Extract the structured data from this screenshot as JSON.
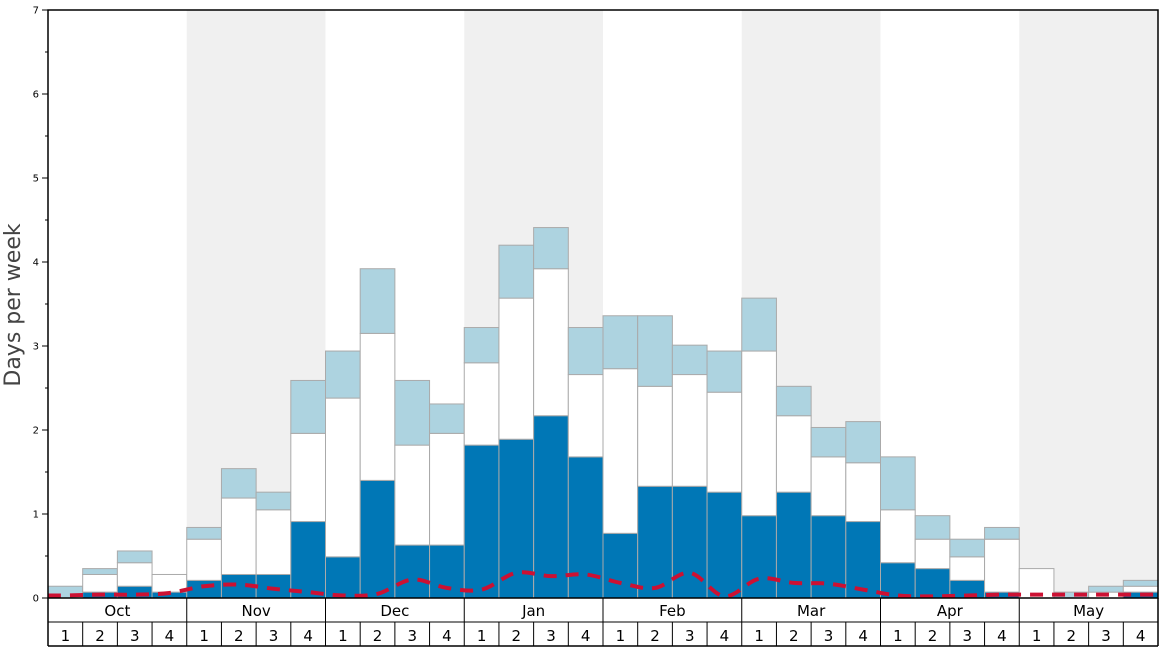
{
  "chart_data": {
    "type": "bar",
    "stacked": true,
    "title": "",
    "xlabel": "",
    "ylabel": "Days per week",
    "ylim": [
      0,
      7
    ],
    "yticks": [
      "0",
      "1",
      "2",
      "3",
      "4",
      "5",
      "6",
      "7"
    ],
    "months": [
      "Oct",
      "Nov",
      "Dec",
      "Jan",
      "Feb",
      "Mar",
      "Apr",
      "May"
    ],
    "week_labels": [
      "1",
      "2",
      "3",
      "4"
    ],
    "shaded_months": [
      "Nov",
      "Jan",
      "Mar",
      "May"
    ],
    "colors": {
      "dark": "#0077b6",
      "white": "#ffffff",
      "light": "#add3e0",
      "bar_edge": "#aaaaaa",
      "shade": "#f0f0f0",
      "average_line": "#cc1133"
    },
    "series": [
      {
        "key": "dark",
        "values": [
          0.0,
          0.07,
          0.14,
          0.07,
          0.21,
          0.28,
          0.28,
          0.91,
          0.49,
          1.4,
          0.63,
          0.63,
          1.82,
          1.89,
          2.17,
          1.68,
          0.77,
          1.33,
          1.33,
          1.26,
          0.98,
          1.26,
          0.98,
          0.91,
          0.42,
          0.35,
          0.21,
          0.07,
          0.0,
          0.0,
          0.0,
          0.07
        ]
      },
      {
        "key": "white",
        "values": [
          0.0,
          0.21,
          0.28,
          0.21,
          0.49,
          0.91,
          0.77,
          1.05,
          1.89,
          1.75,
          1.19,
          1.33,
          0.98,
          1.68,
          1.75,
          0.98,
          1.96,
          1.19,
          1.33,
          1.19,
          1.96,
          0.91,
          0.7,
          0.7,
          0.63,
          0.35,
          0.28,
          0.63,
          0.35,
          0.0,
          0.07,
          0.07
        ]
      },
      {
        "key": "light",
        "values": [
          0.14,
          0.07,
          0.14,
          0.0,
          0.14,
          0.35,
          0.21,
          0.63,
          0.56,
          0.77,
          0.77,
          0.35,
          0.42,
          0.63,
          0.49,
          0.56,
          0.63,
          0.84,
          0.35,
          0.49,
          0.63,
          0.35,
          0.35,
          0.49,
          0.63,
          0.28,
          0.21,
          0.14,
          0.0,
          0.07,
          0.07,
          0.07
        ]
      }
    ],
    "average_line": [
      0.03,
      0.04,
      0.04,
      0.06,
      0.14,
      0.16,
      0.11,
      0.07,
      0.03,
      0.05,
      0.22,
      0.12,
      0.1,
      0.3,
      0.26,
      0.28,
      0.18,
      0.12,
      0.3,
      0.02,
      0.23,
      0.18,
      0.17,
      0.1,
      0.03,
      0.02,
      0.03,
      0.04,
      0.04,
      0.04,
      0.04,
      0.04
    ]
  }
}
